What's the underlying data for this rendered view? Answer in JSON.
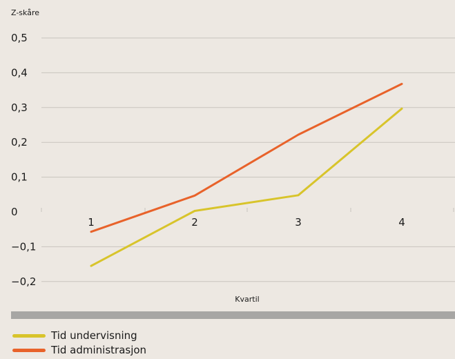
{
  "chart_data": {
    "type": "line",
    "ylabel": "Z-skåre",
    "xlabel": "Kvartil",
    "categories": [
      "1",
      "2",
      "3",
      "4"
    ],
    "ylim": [
      -0.2,
      0.5
    ],
    "yticks": [
      0.5,
      0.4,
      0.3,
      0.2,
      0.1,
      0,
      -0.1,
      -0.2
    ],
    "ytick_labels": [
      "0,5",
      "0,4",
      "0,3",
      "0,2",
      "0,1",
      "0",
      "−0,1",
      "−0,2"
    ],
    "grid": true,
    "legend": "bottom-left",
    "series": [
      {
        "name": "Tid undervisning",
        "color": "#d8c42b",
        "values": [
          -0.155,
          0.003,
          0.048,
          0.297
        ]
      },
      {
        "name": "Tid administrasjon",
        "color": "#e8622a",
        "values": [
          -0.057,
          0.047,
          0.222,
          0.368
        ]
      }
    ]
  }
}
